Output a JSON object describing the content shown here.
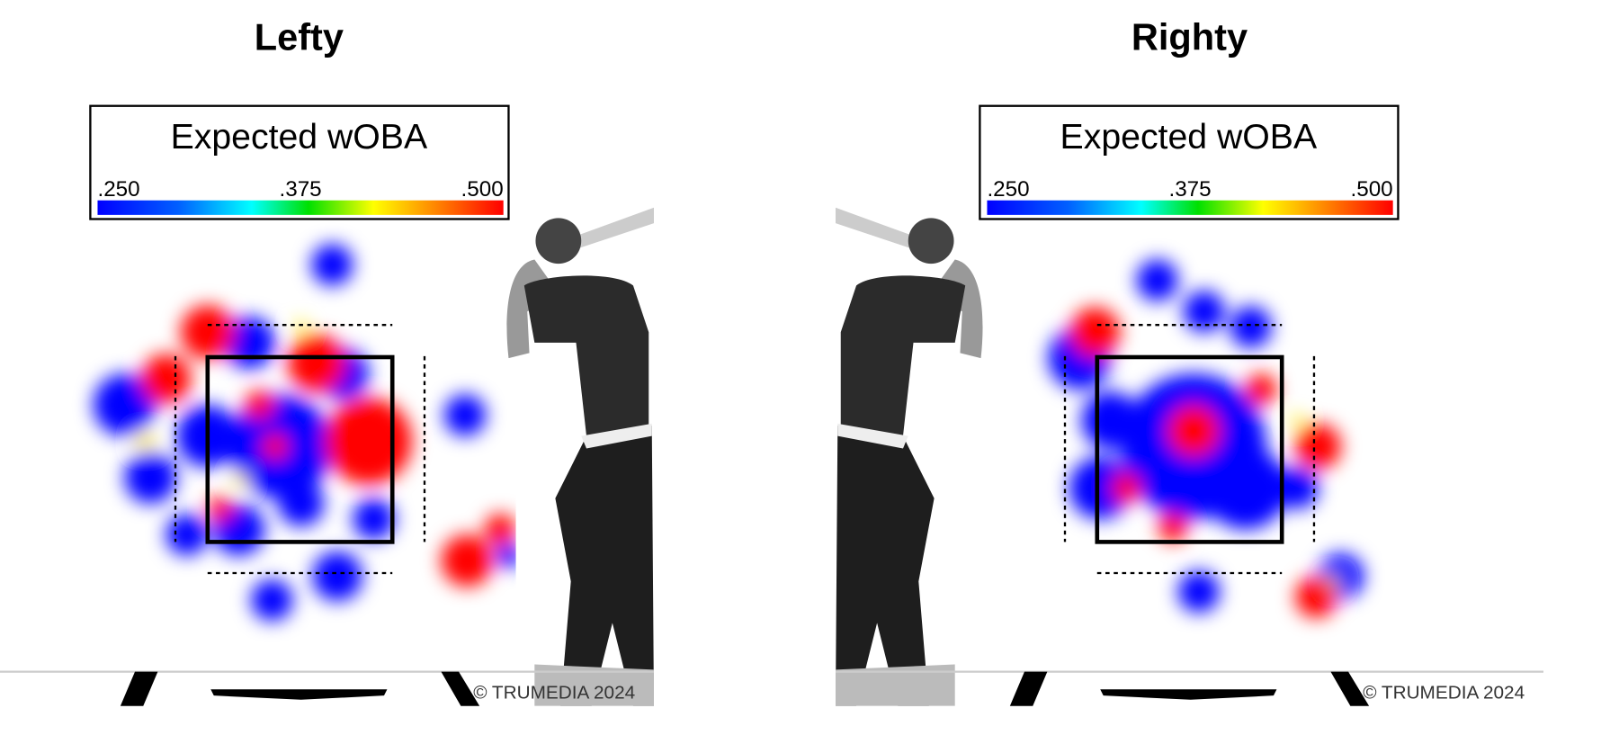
{
  "panels": [
    {
      "title": "Lefty",
      "legend": {
        "title": "Expected wOBA",
        "ticks": [
          {
            "value": 0.25,
            "label": ".250"
          },
          {
            "value": 0.375,
            "label": ".375"
          },
          {
            "value": 0.5,
            "label": ".500"
          }
        ]
      },
      "copyright": "© TRUMEDIA 2024"
    },
    {
      "title": "Righty",
      "legend": {
        "title": "Expected wOBA",
        "ticks": [
          {
            "value": 0.25,
            "label": ".250"
          },
          {
            "value": 0.375,
            "label": ".375"
          },
          {
            "value": 0.5,
            "label": ".500"
          }
        ]
      },
      "copyright": "© TRUMEDIA 2024"
    }
  ]
}
